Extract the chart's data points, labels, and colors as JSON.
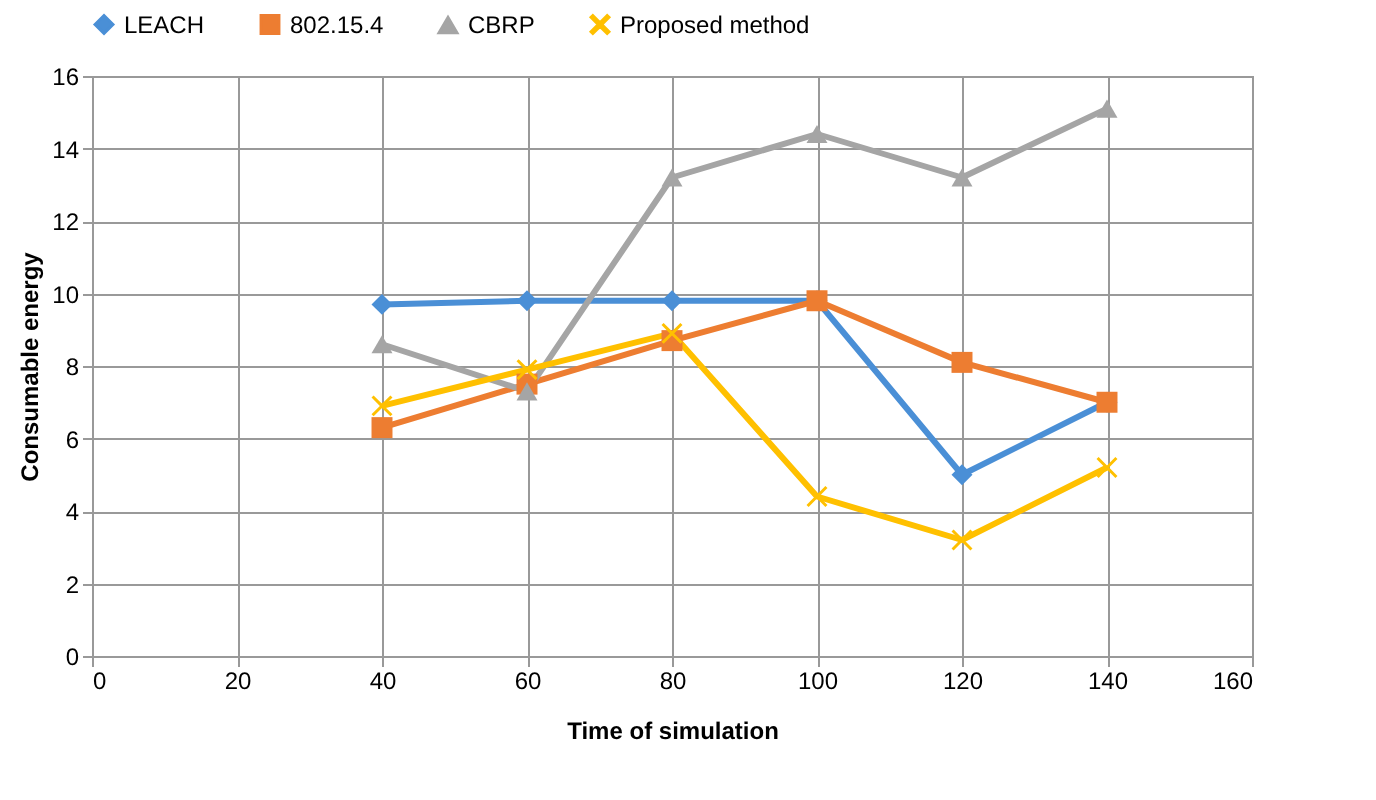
{
  "chart_data": {
    "type": "line",
    "xlabel": "Time of simulation",
    "ylabel": "Consumable energy",
    "x": [
      40,
      60,
      80,
      100,
      120,
      140
    ],
    "series": [
      {
        "name": "LEACH",
        "color": "#4a8fd6",
        "marker": "diamond",
        "values": [
          9.7,
          9.8,
          9.8,
          9.8,
          5.0,
          7.0
        ]
      },
      {
        "name": "802.15.4",
        "color": "#ed7d31",
        "marker": "square",
        "values": [
          6.3,
          7.5,
          8.7,
          9.8,
          8.1,
          7.0
        ]
      },
      {
        "name": "CBRP",
        "color": "#a5a5a5",
        "marker": "triangle",
        "values": [
          8.6,
          7.3,
          13.2,
          14.4,
          13.2,
          15.1
        ]
      },
      {
        "name": "Proposed method",
        "color": "#ffc000",
        "marker": "cross",
        "values": [
          6.9,
          7.9,
          8.9,
          4.4,
          3.2,
          5.2
        ]
      }
    ],
    "xlim": [
      0,
      160
    ],
    "xticks": [
      0,
      20,
      40,
      60,
      80,
      100,
      120,
      140,
      160
    ],
    "ylim": [
      0,
      16
    ],
    "yticks": [
      0,
      2,
      4,
      6,
      8,
      10,
      12,
      14,
      16
    ],
    "grid": true,
    "legend": "top"
  }
}
